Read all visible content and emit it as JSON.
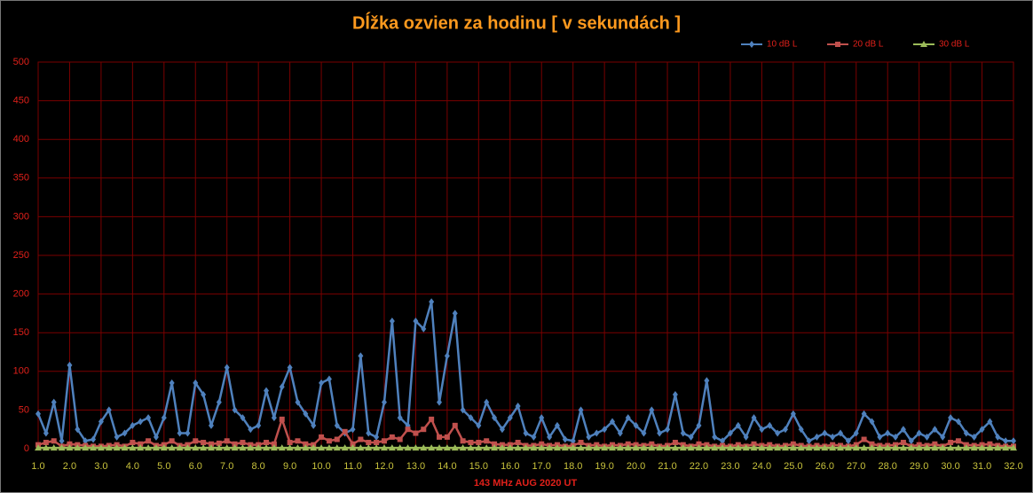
{
  "chart_data": {
    "type": "line",
    "title": "Dĺžka ozvien za hodinu [ v sekundách ]",
    "x_label": "143 MHz AUG 2020 UT",
    "x": [
      1,
      1.25,
      1.5,
      1.75,
      2,
      2.25,
      2.5,
      2.75,
      3,
      3.25,
      3.5,
      3.75,
      4,
      4.25,
      4.5,
      4.75,
      5,
      5.25,
      5.5,
      5.75,
      6,
      6.25,
      6.5,
      6.75,
      7,
      7.25,
      7.5,
      7.75,
      8,
      8.25,
      8.5,
      8.75,
      9,
      9.25,
      9.5,
      9.75,
      10,
      10.25,
      10.5,
      10.75,
      11,
      11.25,
      11.5,
      11.75,
      12,
      12.25,
      12.5,
      12.75,
      13,
      13.25,
      13.5,
      13.75,
      14,
      14.25,
      14.5,
      14.75,
      15,
      15.25,
      15.5,
      15.75,
      16,
      16.25,
      16.5,
      16.75,
      17,
      17.25,
      17.5,
      17.75,
      18,
      18.25,
      18.5,
      18.75,
      19,
      19.25,
      19.5,
      19.75,
      20,
      20.25,
      20.5,
      20.75,
      21,
      21.25,
      21.5,
      21.75,
      22,
      22.25,
      22.5,
      22.75,
      23,
      23.25,
      23.5,
      23.75,
      24,
      24.25,
      24.5,
      24.75,
      25,
      25.25,
      25.5,
      25.75,
      26,
      26.25,
      26.5,
      26.75,
      27,
      27.25,
      27.5,
      27.75,
      28,
      28.25,
      28.5,
      28.75,
      29,
      29.25,
      29.5,
      29.75,
      30,
      30.25,
      30.5,
      30.75,
      31,
      31.25,
      31.5,
      31.75,
      32
    ],
    "series": [
      {
        "name": "10 dB L",
        "color": "#4f81bd",
        "marker": "diamond",
        "values": [
          45,
          20,
          60,
          10,
          108,
          25,
          10,
          12,
          35,
          50,
          15,
          20,
          30,
          35,
          40,
          15,
          40,
          85,
          20,
          20,
          85,
          70,
          30,
          60,
          105,
          50,
          40,
          25,
          30,
          75,
          40,
          80,
          105,
          60,
          45,
          30,
          85,
          90,
          30,
          20,
          25,
          120,
          20,
          15,
          60,
          165,
          40,
          30,
          165,
          155,
          190,
          60,
          120,
          175,
          50,
          40,
          30,
          60,
          40,
          25,
          40,
          55,
          20,
          15,
          40,
          15,
          30,
          12,
          10,
          50,
          15,
          20,
          25,
          35,
          20,
          40,
          30,
          20,
          50,
          20,
          25,
          70,
          20,
          15,
          30,
          88,
          15,
          10,
          20,
          30,
          15,
          40,
          25,
          30,
          20,
          25,
          45,
          25,
          10,
          15,
          20,
          15,
          20,
          10,
          20,
          45,
          35,
          15,
          20,
          15,
          25,
          10,
          20,
          15,
          25,
          15,
          40,
          35,
          20,
          15,
          25,
          35,
          15,
          10,
          10
        ]
      },
      {
        "name": "20 dB L",
        "color": "#c0504d",
        "marker": "square",
        "values": [
          5,
          8,
          10,
          3,
          6,
          5,
          4,
          3,
          3,
          4,
          5,
          3,
          8,
          6,
          10,
          4,
          5,
          10,
          4,
          5,
          10,
          8,
          6,
          7,
          10,
          6,
          8,
          5,
          5,
          8,
          6,
          38,
          8,
          10,
          6,
          5,
          15,
          10,
          12,
          22,
          6,
          12,
          8,
          8,
          10,
          15,
          12,
          25,
          20,
          25,
          38,
          15,
          15,
          30,
          10,
          8,
          8,
          10,
          6,
          5,
          5,
          8,
          4,
          4,
          6,
          4,
          5,
          3,
          4,
          8,
          4,
          5,
          3,
          5,
          4,
          6,
          5,
          4,
          6,
          3,
          4,
          8,
          5,
          3,
          6,
          5,
          3,
          4,
          3,
          5,
          3,
          6,
          4,
          5,
          3,
          4,
          6,
          4,
          3,
          4,
          3,
          5,
          4,
          3,
          5,
          12,
          6,
          4,
          4,
          5,
          8,
          3,
          5,
          4,
          6,
          3,
          8,
          10,
          5,
          4,
          5,
          6,
          4,
          3,
          3
        ]
      },
      {
        "name": "30 dB L",
        "color": "#9bbb59",
        "marker": "triangle",
        "values": [
          1,
          1,
          1,
          1,
          1,
          1,
          1,
          1,
          1,
          1,
          1,
          1,
          1,
          1,
          1,
          1,
          1,
          1,
          1,
          1,
          1,
          1,
          1,
          1,
          1,
          1,
          1,
          1,
          1,
          1,
          1,
          1,
          1,
          1,
          1,
          1,
          1,
          1,
          1,
          1,
          1,
          1,
          1,
          1,
          1,
          1,
          1,
          1,
          1,
          1,
          1,
          1,
          1,
          1,
          1,
          1,
          1,
          1,
          1,
          1,
          1,
          1,
          1,
          1,
          1,
          1,
          1,
          1,
          1,
          1,
          1,
          1,
          1,
          1,
          1,
          1,
          1,
          1,
          1,
          1,
          1,
          1,
          1,
          1,
          1,
          1,
          1,
          1,
          1,
          1,
          1,
          1,
          1,
          1,
          1,
          1,
          1,
          1,
          1,
          1,
          1,
          1,
          1,
          1,
          1,
          1,
          1,
          1,
          1,
          1,
          1,
          1,
          1,
          1,
          1,
          1,
          1,
          1,
          1,
          1,
          1,
          1,
          1,
          1,
          1
        ]
      }
    ],
    "xlim": [
      1,
      32
    ],
    "xticks": [
      {
        "value": 1,
        "label": "1.0"
      },
      {
        "value": 2,
        "label": "2.0"
      },
      {
        "value": 3,
        "label": "3.0"
      },
      {
        "value": 4,
        "label": "4.0"
      },
      {
        "value": 5,
        "label": "5.0"
      },
      {
        "value": 6,
        "label": "6.0"
      },
      {
        "value": 7,
        "label": "7.0"
      },
      {
        "value": 8,
        "label": "8.0"
      },
      {
        "value": 9,
        "label": "9.0"
      },
      {
        "value": 10,
        "label": "10.0"
      },
      {
        "value": 11,
        "label": "11.0"
      },
      {
        "value": 12,
        "label": "12.0"
      },
      {
        "value": 13,
        "label": "13.0"
      },
      {
        "value": 14,
        "label": "14.0"
      },
      {
        "value": 15,
        "label": "15.0"
      },
      {
        "value": 16,
        "label": "16.0"
      },
      {
        "value": 17,
        "label": "17.0"
      },
      {
        "value": 18,
        "label": "18.0"
      },
      {
        "value": 19,
        "label": "19.0"
      },
      {
        "value": 20,
        "label": "20.0"
      },
      {
        "value": 21,
        "label": "21.0"
      },
      {
        "value": 22,
        "label": "22.0"
      },
      {
        "value": 23,
        "label": "23.0"
      },
      {
        "value": 24,
        "label": "24.0"
      },
      {
        "value": 25,
        "label": "25.0"
      },
      {
        "value": 26,
        "label": "26.0"
      },
      {
        "value": 27,
        "label": "27.0"
      },
      {
        "value": 28,
        "label": "28.0"
      },
      {
        "value": 29,
        "label": "29.0"
      },
      {
        "value": 30,
        "label": "30.0"
      },
      {
        "value": 31,
        "label": "31.0"
      },
      {
        "value": 32,
        "label": "32.0"
      }
    ],
    "ylim": [
      0,
      500
    ],
    "yticks": [
      0,
      50,
      100,
      150,
      200,
      250,
      300,
      350,
      400,
      450,
      500
    ],
    "grid": true,
    "legend": "top-right"
  }
}
